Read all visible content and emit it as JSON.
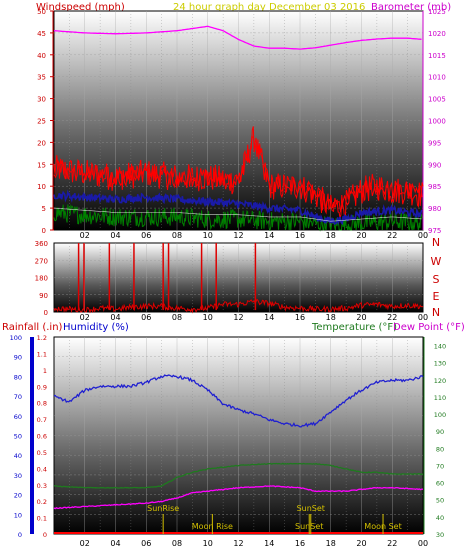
{
  "header": {
    "left": "Windspeed (mph)",
    "center": "24 hour graph day   December 03 2016",
    "right": "Barometer (mb)"
  },
  "colors": {
    "wind_label": "#cc0000",
    "center_label": "#cccc00",
    "baro": "#ff00ff",
    "gust": "#ff0000",
    "avg": "#1a1aa8",
    "dir": "#dd0000",
    "green": "#008000",
    "humidity": "#2020d0",
    "temp": "#1f7a1f",
    "dew": "#ff00ff",
    "rain_axis": "#0000cc",
    "event": "#d4c000"
  },
  "chart_data": [
    {
      "type": "line",
      "title": "24 hour graph day   December 03 2016",
      "xlabel": "",
      "x_ticks": [
        "02",
        "04",
        "06",
        "08",
        "10",
        "12",
        "14",
        "16",
        "18",
        "20",
        "22",
        "00"
      ],
      "y_left_label": "Windspeed (mph)",
      "y_left_ticks": [
        0,
        5,
        10,
        15,
        20,
        25,
        30,
        35,
        40,
        45,
        50
      ],
      "ylim_left": [
        0,
        50
      ],
      "y_right_label": "Barometer (mb)",
      "y_right_ticks": [
        975,
        980,
        985,
        990,
        995,
        1000,
        1005,
        1010,
        1015,
        1020,
        1025
      ],
      "ylim_right": [
        975,
        1025
      ],
      "grid": true,
      "series": [
        {
          "name": "Barometer (mb)",
          "axis": "right",
          "x": [
            0,
            2,
            4,
            6,
            8,
            9,
            10,
            11,
            12,
            13,
            14,
            15,
            16,
            17,
            18,
            19,
            20,
            21,
            22,
            23,
            24
          ],
          "values": [
            1020.5,
            1020,
            1019.8,
            1020,
            1020.5,
            1021,
            1021.5,
            1020.5,
            1018.5,
            1017,
            1016.5,
            1016.5,
            1016.3,
            1016.6,
            1017.2,
            1017.8,
            1018.3,
            1018.6,
            1018.8,
            1018.8,
            1018.5
          ]
        },
        {
          "name": "Gust",
          "axis": "left",
          "x": [
            0,
            2,
            4,
            6,
            8,
            10,
            12,
            13,
            14,
            16,
            17,
            18,
            19,
            20,
            21,
            22,
            23,
            24
          ],
          "values": [
            14,
            13,
            12,
            13,
            12,
            12,
            11,
            21,
            10,
            10,
            8,
            5,
            6,
            9,
            10,
            9,
            9,
            8
          ]
        },
        {
          "name": "Average",
          "axis": "left",
          "x": [
            0,
            2,
            4,
            6,
            8,
            10,
            12,
            14,
            16,
            17,
            18,
            19,
            20,
            22,
            24
          ],
          "values": [
            8,
            7.5,
            7,
            7.5,
            7,
            6.5,
            6,
            5,
            4.5,
            3,
            2,
            2.5,
            4,
            4.5,
            3.5
          ]
        },
        {
          "name": "Green trace",
          "axis": "left",
          "x": [
            0,
            2,
            4,
            6,
            8,
            10,
            12,
            14,
            16,
            17,
            18,
            20,
            22,
            24
          ],
          "values": [
            4,
            3.5,
            3,
            3,
            3,
            2.5,
            2.5,
            2,
            2,
            1.5,
            1,
            1.5,
            2,
            1.5
          ]
        }
      ]
    },
    {
      "type": "scatter",
      "title": "",
      "x_ticks": [
        "02",
        "04",
        "06",
        "08",
        "10",
        "12",
        "14",
        "16",
        "18",
        "20",
        "22",
        "00"
      ],
      "y_ticks": [
        0,
        90,
        180,
        270,
        360
      ],
      "ylim": [
        0,
        360
      ],
      "y_right_labels": [
        "N",
        "W",
        "S",
        "E",
        "N"
      ],
      "grid": true,
      "series": [
        {
          "name": "Wind direction",
          "x": [
            0,
            1,
            2,
            3,
            4,
            5,
            6,
            7,
            8,
            9,
            10,
            11,
            12,
            13,
            14,
            15,
            16,
            17,
            18,
            19,
            20,
            21,
            22,
            23,
            24
          ],
          "values": [
            20,
            15,
            10,
            20,
            15,
            25,
            30,
            30,
            20,
            15,
            20,
            40,
            40,
            55,
            45,
            25,
            20,
            15,
            15,
            20,
            35,
            40,
            30,
            35,
            30
          ]
        },
        {
          "name": "Direction spikes",
          "x": [
            1.6,
            1.95,
            3.6,
            5.2,
            7.1,
            7.45,
            9.6,
            10.55,
            13.1
          ],
          "values": [
            360,
            360,
            360,
            360,
            360,
            360,
            360,
            360,
            360
          ]
        }
      ]
    },
    {
      "type": "line",
      "title": "",
      "x_ticks": [
        "02",
        "04",
        "06",
        "08",
        "10",
        "12",
        "14",
        "16",
        "18",
        "20",
        "22",
        "00"
      ],
      "y_left_label": "Rainfall (.in)",
      "y_left_ticks": [
        0,
        10,
        20,
        30,
        40,
        50,
        60,
        70,
        80,
        90,
        100
      ],
      "y_inner_label": "Humidity (%)",
      "y_inner_ticks": [
        0,
        0.1,
        0.2,
        0.3,
        0.4,
        0.5,
        0.6,
        0.7,
        0.8,
        0.9,
        1,
        1.1,
        1.2
      ],
      "y_right_label": "Temperature (°F)",
      "y_right_label2": "Dew Point (°F)",
      "y_right_ticks": [
        30,
        40,
        50,
        60,
        70,
        80,
        90,
        100,
        110,
        120,
        130,
        140
      ],
      "ylim_left": [
        0,
        100
      ],
      "ylim_right": [
        30,
        145
      ],
      "grid": true,
      "series": [
        {
          "name": "Humidity (%)",
          "axis": "left",
          "x": [
            0,
            1,
            2,
            3,
            4,
            5,
            6,
            7,
            8,
            9,
            10,
            11,
            12,
            13,
            14,
            15,
            16,
            17,
            18,
            19,
            20,
            21,
            22,
            23,
            24
          ],
          "values": [
            70,
            67,
            73,
            75,
            75,
            75,
            77,
            80,
            80,
            78,
            73,
            66,
            63,
            61,
            58,
            56,
            55,
            56,
            62,
            68,
            73,
            77,
            78,
            78,
            80
          ]
        },
        {
          "name": "Temperature (°F)",
          "axis": "right",
          "x": [
            0,
            2,
            4,
            6,
            7,
            8,
            9,
            10,
            12,
            14,
            16,
            17,
            18,
            19,
            20,
            21,
            22,
            24
          ],
          "values": [
            58,
            57,
            57,
            57,
            58,
            63,
            66,
            68,
            70,
            71,
            71,
            71,
            70,
            68,
            66,
            66,
            65,
            65
          ]
        },
        {
          "name": "Dew Point (°F)",
          "axis": "right",
          "x": [
            0,
            2,
            4,
            6,
            7,
            8,
            9,
            10,
            12,
            14,
            16,
            17,
            18,
            19,
            20,
            21,
            22,
            24
          ],
          "values": [
            45,
            46,
            47,
            48,
            49,
            51,
            54,
            55,
            57,
            58,
            57,
            55,
            55,
            55,
            56,
            57,
            57,
            56
          ]
        }
      ],
      "events": [
        {
          "label": "SunRise",
          "x": 7.1,
          "row": "upper"
        },
        {
          "label": "Moon Rise",
          "x": 10.3,
          "row": "lower"
        },
        {
          "label": "SunSet",
          "x": 16.7,
          "row": "upper"
        },
        {
          "label": "SunSet",
          "x": 16.6,
          "row": "lower"
        },
        {
          "label": "Moon Set",
          "x": 21.4,
          "row": "lower"
        }
      ],
      "rain_values": [
        0,
        0,
        0,
        0,
        0,
        0,
        0,
        0,
        0,
        0,
        0,
        0,
        0,
        0,
        0,
        0,
        0,
        0,
        0,
        0,
        0,
        0,
        0,
        0,
        0
      ]
    }
  ]
}
